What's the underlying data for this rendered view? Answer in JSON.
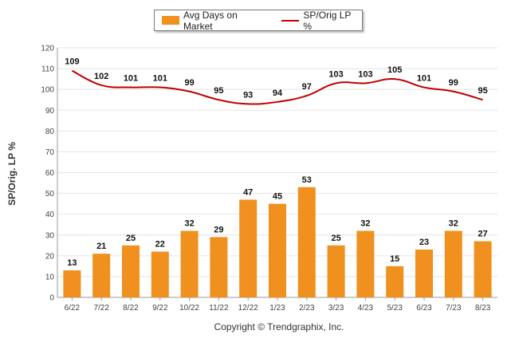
{
  "legend": [
    {
      "label": "Avg Days on Market",
      "kind": "bar",
      "color": "#f0901e"
    },
    {
      "label": "SP/Orig LP %",
      "kind": "line",
      "color": "#c00000"
    }
  ],
  "copyright": "Copyright © Trendgraphix, Inc.",
  "chart_data": {
    "type": "bar",
    "title": "",
    "xlabel": "",
    "ylabel": "SP/Orig. LP %",
    "ylim": [
      0,
      120
    ],
    "yticks": [
      0,
      10,
      20,
      30,
      40,
      50,
      60,
      70,
      80,
      90,
      100,
      110,
      120
    ],
    "grid": true,
    "legend_position": "top-center",
    "categories": [
      "6/22",
      "7/22",
      "8/22",
      "9/22",
      "10/22",
      "11/22",
      "12/22",
      "1/23",
      "2/23",
      "3/23",
      "4/23",
      "5/23",
      "6/23",
      "7/23",
      "8/23"
    ],
    "series": [
      {
        "name": "Avg Days on Market",
        "type": "bar",
        "color": "#f0901e",
        "values": [
          13,
          21,
          25,
          22,
          32,
          29,
          47,
          45,
          53,
          25,
          32,
          15,
          23,
          32,
          27
        ]
      },
      {
        "name": "SP/Orig LP %",
        "type": "line",
        "color": "#c00000",
        "values": [
          109,
          102,
          101,
          101,
          99,
          95,
          93,
          94,
          97,
          103,
          103,
          105,
          101,
          99,
          95
        ]
      }
    ]
  }
}
